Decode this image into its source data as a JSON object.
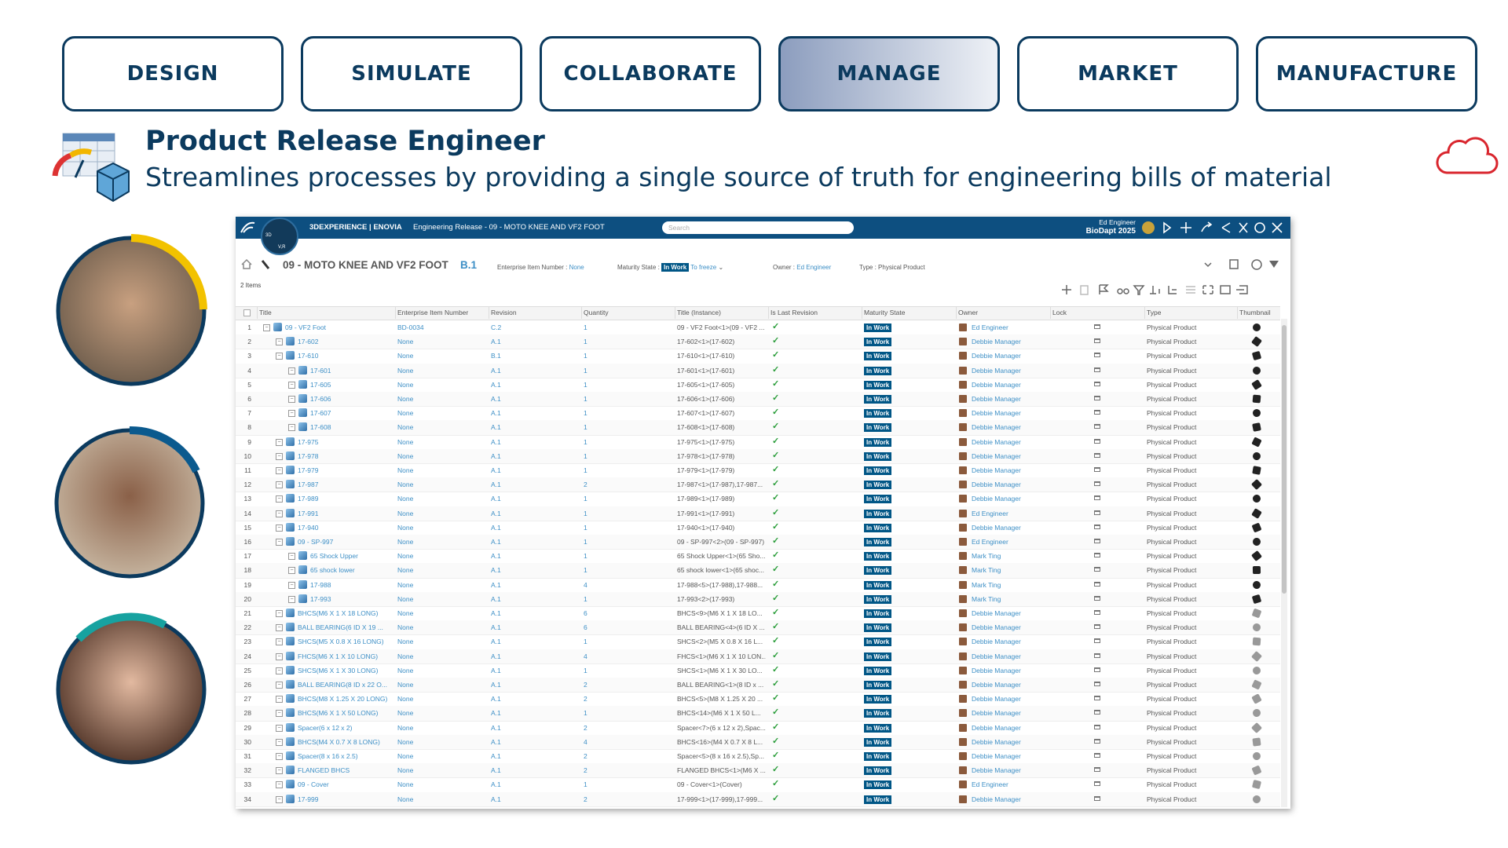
{
  "tabs": [
    {
      "label": "DESIGN"
    },
    {
      "label": "SIMULATE"
    },
    {
      "label": "COLLABORATE"
    },
    {
      "label": "MANAGE",
      "active": true
    },
    {
      "label": "MARKET"
    },
    {
      "label": "MANUFACTURE"
    }
  ],
  "header": {
    "title": "Product Release Engineer",
    "subtitle": "Streamlines processes by providing a single source of truth for engineering bills of material"
  },
  "app": {
    "brand": "3DEXPERIENCE | ENOVIA",
    "context": "Engineering Release - 09 - MOTO KNEE AND VF2 FOOT",
    "search": "Search",
    "compass_top": "3D",
    "compass_bottom": "V,R",
    "user": "Ed Engineer",
    "collab_space": "BioDapt 2025",
    "object": {
      "name": "09 - MOTO KNEE AND VF2 FOOT",
      "revision": "B.1",
      "ein_label": "Enterprise Item Number :",
      "ein": "None",
      "maturity_label": "Maturity State :",
      "maturity": "In Work",
      "next_state": "To freeze",
      "owner_label": "Owner :",
      "owner": "Ed Engineer",
      "type_label": "Type :",
      "type": "Physical Product"
    },
    "item_count": "2 Items",
    "table": {
      "columns": [
        "Title",
        "Enterprise Item Number",
        "Revision",
        "Quantity",
        "Title (Instance)",
        "Is Last Revision",
        "Maturity State",
        "Owner",
        "Lock",
        "Type",
        "Thumbnail"
      ],
      "rows": [
        [
          "1",
          "09 - VF2 Foot",
          "BD-0034",
          "C.2",
          "1",
          "09 - VF2 Foot<1>(09 - VF2 ...",
          "In Work",
          "Ed Engineer",
          "Physical Product"
        ],
        [
          "2",
          "17-602",
          "None",
          "A.1",
          "1",
          "17-602<1>(17-602)",
          "In Work",
          "Debbie Manager",
          "Physical Product"
        ],
        [
          "3",
          "17-610",
          "None",
          "B.1",
          "1",
          "17-610<1>(17-610)",
          "In Work",
          "Debbie Manager",
          "Physical Product"
        ],
        [
          "4",
          "17-601",
          "None",
          "A.1",
          "1",
          "17-601<1>(17-601)",
          "In Work",
          "Debbie Manager",
          "Physical Product"
        ],
        [
          "5",
          "17-605",
          "None",
          "A.1",
          "1",
          "17-605<1>(17-605)",
          "In Work",
          "Debbie Manager",
          "Physical Product"
        ],
        [
          "6",
          "17-606",
          "None",
          "A.1",
          "1",
          "17-606<1>(17-606)",
          "In Work",
          "Debbie Manager",
          "Physical Product"
        ],
        [
          "7",
          "17-607",
          "None",
          "A.1",
          "1",
          "17-607<1>(17-607)",
          "In Work",
          "Debbie Manager",
          "Physical Product"
        ],
        [
          "8",
          "17-608",
          "None",
          "A.1",
          "1",
          "17-608<1>(17-608)",
          "In Work",
          "Debbie Manager",
          "Physical Product"
        ],
        [
          "9",
          "17-975",
          "None",
          "A.1",
          "1",
          "17-975<1>(17-975)",
          "In Work",
          "Debbie Manager",
          "Physical Product"
        ],
        [
          "10",
          "17-978",
          "None",
          "A.1",
          "1",
          "17-978<1>(17-978)",
          "In Work",
          "Debbie Manager",
          "Physical Product"
        ],
        [
          "11",
          "17-979",
          "None",
          "A.1",
          "1",
          "17-979<1>(17-979)",
          "In Work",
          "Debbie Manager",
          "Physical Product"
        ],
        [
          "12",
          "17-987",
          "None",
          "A.1",
          "2",
          "17-987<1>(17-987),17-987...",
          "In Work",
          "Debbie Manager",
          "Physical Product"
        ],
        [
          "13",
          "17-989",
          "None",
          "A.1",
          "1",
          "17-989<1>(17-989)",
          "In Work",
          "Debbie Manager",
          "Physical Product"
        ],
        [
          "14",
          "17-991",
          "None",
          "A.1",
          "1",
          "17-991<1>(17-991)",
          "In Work",
          "Ed Engineer",
          "Physical Product"
        ],
        [
          "15",
          "17-940",
          "None",
          "A.1",
          "1",
          "17-940<1>(17-940)",
          "In Work",
          "Debbie Manager",
          "Physical Product"
        ],
        [
          "16",
          "09 - SP-997",
          "None",
          "A.1",
          "1",
          "09 - SP-997<2>(09 - SP-997)",
          "In Work",
          "Ed Engineer",
          "Physical Product"
        ],
        [
          "17",
          "65 Shock Upper",
          "None",
          "A.1",
          "1",
          "65 Shock Upper<1>(65 Sho...",
          "In Work",
          "Mark Ting",
          "Physical Product"
        ],
        [
          "18",
          "65 shock lower",
          "None",
          "A.1",
          "1",
          "65 shock lower<1>(65 shoc...",
          "In Work",
          "Mark Ting",
          "Physical Product"
        ],
        [
          "19",
          "17-988",
          "None",
          "A.1",
          "4",
          "17-988<5>(17-988),17-988...",
          "In Work",
          "Mark Ting",
          "Physical Product"
        ],
        [
          "20",
          "17-993",
          "None",
          "A.1",
          "1",
          "17-993<2>(17-993)",
          "In Work",
          "Mark Ting",
          "Physical Product"
        ],
        [
          "21",
          "BHCS(M6 X 1 X 18 LONG)",
          "None",
          "A.1",
          "6",
          "BHCS<9>(M6 X 1 X 18 LO...",
          "In Work",
          "Debbie Manager",
          "Physical Product"
        ],
        [
          "22",
          "BALL BEARING(6 ID X 19 ...",
          "None",
          "A.1",
          "6",
          "BALL BEARING<4>(6 ID X ...",
          "In Work",
          "Debbie Manager",
          "Physical Product"
        ],
        [
          "23",
          "SHCS(M5 X 0.8 X 16 LONG)",
          "None",
          "A.1",
          "1",
          "SHCS<2>(M5 X 0.8 X 16 L...",
          "In Work",
          "Debbie Manager",
          "Physical Product"
        ],
        [
          "24",
          "FHCS(M6 X 1 X 10 LONG)",
          "None",
          "A.1",
          "4",
          "FHCS<1>(M6 X 1 X 10 LON...",
          "In Work",
          "Debbie Manager",
          "Physical Product"
        ],
        [
          "25",
          "SHCS(M6 X 1 X 30 LONG)",
          "None",
          "A.1",
          "1",
          "SHCS<1>(M6 X 1 X 30 LO...",
          "In Work",
          "Debbie Manager",
          "Physical Product"
        ],
        [
          "26",
          "BALL BEARING(8 ID x 22 O...",
          "None",
          "A.1",
          "2",
          "BALL BEARING<1>(8 ID x ...",
          "In Work",
          "Debbie Manager",
          "Physical Product"
        ],
        [
          "27",
          "BHCS(M8 X 1.25 X 20 LONG)",
          "None",
          "A.1",
          "2",
          "BHCS<5>(M8 X 1.25 X 20 ...",
          "In Work",
          "Debbie Manager",
          "Physical Product"
        ],
        [
          "28",
          "BHCS(M6 X 1 X 50 LONG)",
          "None",
          "A.1",
          "1",
          "BHCS<14>(M6 X 1 X 50 L...",
          "In Work",
          "Debbie Manager",
          "Physical Product"
        ],
        [
          "29",
          "Spacer(6 x 12 x 2)",
          "None",
          "A.1",
          "2",
          "Spacer<7>(6 x 12 x 2),Spac...",
          "In Work",
          "Debbie Manager",
          "Physical Product"
        ],
        [
          "30",
          "BHCS(M4 X 0.7 X 8 LONG)",
          "None",
          "A.1",
          "4",
          "BHCS<16>(M4 X 0.7 X 8 L...",
          "In Work",
          "Debbie Manager",
          "Physical Product"
        ],
        [
          "31",
          "Spacer(8 x 16 x 2.5)",
          "None",
          "A.1",
          "2",
          "Spacer<5>(8 x 16 x 2.5),Sp...",
          "In Work",
          "Debbie Manager",
          "Physical Product"
        ],
        [
          "32",
          "FLANGED BHCS",
          "None",
          "A.1",
          "2",
          "FLANGED BHCS<1>(M6 X ...",
          "In Work",
          "Debbie Manager",
          "Physical Product"
        ],
        [
          "33",
          "09 - Cover",
          "None",
          "A.1",
          "1",
          "09 - Cover<1>(Cover)",
          "In Work",
          "Ed Engineer",
          "Physical Product"
        ],
        [
          "34",
          "17-999",
          "None",
          "A.1",
          "2",
          "17-999<1>(17-999),17-999...",
          "In Work",
          "Debbie Manager",
          "Physical Product"
        ]
      ]
    }
  }
}
